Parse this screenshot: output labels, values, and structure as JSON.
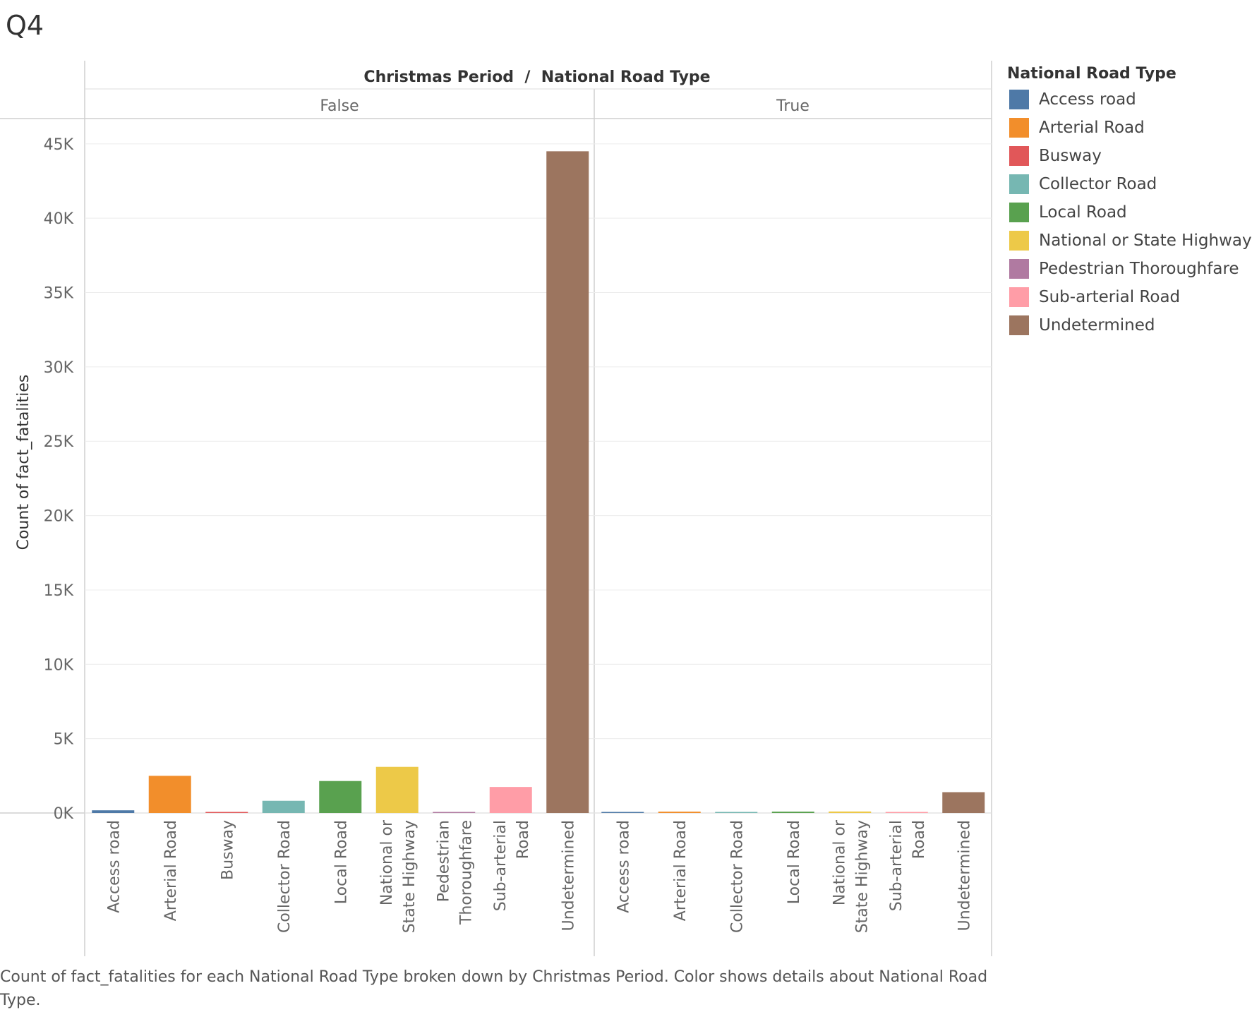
{
  "sheet_title": "Q4",
  "caption": "Count of fact_fatalities for each National Road Type broken down by Christmas Period.  Color shows details about National Road Type.",
  "legend": {
    "title": "National Road Type",
    "items": [
      {
        "label": "Access road",
        "color": "#4e79a7"
      },
      {
        "label": "Arterial Road",
        "color": "#f28e2b"
      },
      {
        "label": "Busway",
        "color": "#e15759"
      },
      {
        "label": "Collector Road",
        "color": "#76b7b2"
      },
      {
        "label": "Local Road",
        "color": "#59a14f"
      },
      {
        "label": "National or State Highway",
        "color": "#edc948"
      },
      {
        "label": "Pedestrian Thoroughfare",
        "color": "#b07aa1"
      },
      {
        "label": "Sub-arterial Road",
        "color": "#ff9da7"
      },
      {
        "label": "Undetermined",
        "color": "#9c755f"
      }
    ]
  },
  "chart_data": {
    "type": "bar",
    "title": "Christmas Period  /  National Road Type",
    "ylabel": "Count of fact_fatalities",
    "xlabel": "",
    "ylim": [
      0,
      46700
    ],
    "yticks": [
      0,
      5000,
      10000,
      15000,
      20000,
      25000,
      30000,
      35000,
      40000,
      45000
    ],
    "ytick_labels": [
      "0K",
      "5K",
      "10K",
      "15K",
      "20K",
      "25K",
      "30K",
      "35K",
      "40K",
      "45K"
    ],
    "grid": true,
    "legend_position": "right",
    "panes": [
      {
        "label": "False",
        "categories": [
          {
            "label": [
              "Access road"
            ],
            "series": "Access road",
            "value": 180
          },
          {
            "label": [
              "Arterial Road"
            ],
            "series": "Arterial Road",
            "value": 2500
          },
          {
            "label": [
              "Busway"
            ],
            "series": "Busway",
            "value": 10
          },
          {
            "label": [
              "Collector Road"
            ],
            "series": "Collector Road",
            "value": 820
          },
          {
            "label": [
              "Local Road"
            ],
            "series": "Local Road",
            "value": 2150
          },
          {
            "label": [
              "National or",
              "State Highway"
            ],
            "series": "National or State Highway",
            "value": 3100
          },
          {
            "label": [
              "Pedestrian",
              "Thoroughfare"
            ],
            "series": "Pedestrian Thoroughfare",
            "value": 5
          },
          {
            "label": [
              "Sub-arterial",
              "Road"
            ],
            "series": "Sub-arterial Road",
            "value": 1750
          },
          {
            "label": [
              "Undetermined"
            ],
            "series": "Undetermined",
            "value": 44500
          }
        ]
      },
      {
        "label": "True",
        "categories": [
          {
            "label": [
              "Access road"
            ],
            "series": "Access road",
            "value": 5
          },
          {
            "label": [
              "Arterial Road"
            ],
            "series": "Arterial Road",
            "value": 90
          },
          {
            "label": [
              "Collector Road"
            ],
            "series": "Collector Road",
            "value": 20
          },
          {
            "label": [
              "Local Road"
            ],
            "series": "Local Road",
            "value": 90
          },
          {
            "label": [
              "National or",
              "State Highway"
            ],
            "series": "National or State Highway",
            "value": 100
          },
          {
            "label": [
              "Sub-arterial",
              "Road"
            ],
            "series": "Sub-arterial Road",
            "value": 60
          },
          {
            "label": [
              "Undetermined"
            ],
            "series": "Undetermined",
            "value": 1400
          }
        ]
      }
    ]
  }
}
